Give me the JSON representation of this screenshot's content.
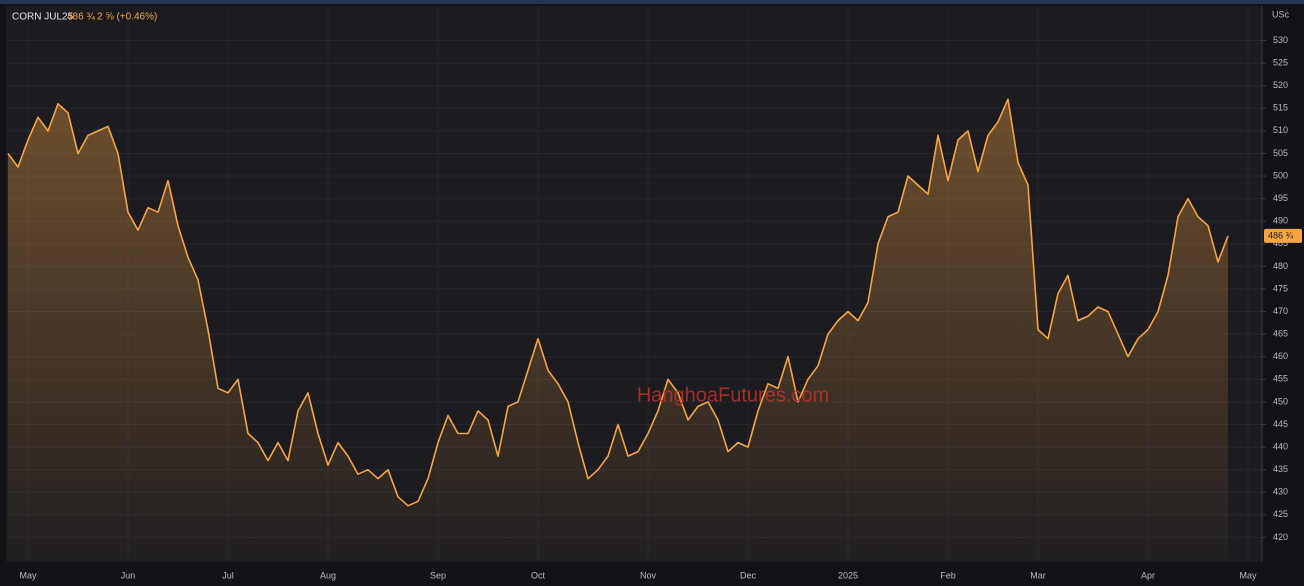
{
  "chart_data": {
    "type": "line",
    "title": "CORN JUL25",
    "change": "2 ⅝ (+0.46%)",
    "y_unit": "USc",
    "watermark": "HanghoaFutures.com",
    "categories": [
      null,
      null,
      "May",
      null,
      null,
      null,
      null,
      null,
      null,
      null,
      null,
      null,
      "Jun",
      null,
      null,
      null,
      null,
      null,
      null,
      null,
      null,
      null,
      "Jul",
      null,
      null,
      null,
      null,
      null,
      null,
      null,
      null,
      null,
      "Aug",
      null,
      null,
      null,
      null,
      null,
      null,
      null,
      null,
      null,
      null,
      "Sep",
      null,
      null,
      null,
      null,
      null,
      null,
      null,
      null,
      null,
      "Oct",
      null,
      null,
      null,
      null,
      null,
      null,
      null,
      null,
      null,
      null,
      "Nov",
      null,
      null,
      null,
      null,
      null,
      null,
      null,
      null,
      null,
      "Dec",
      null,
      null,
      null,
      null,
      null,
      null,
      null,
      null,
      null,
      "2025",
      null,
      null,
      null,
      null,
      null,
      null,
      null,
      null,
      null,
      "Feb",
      null,
      null,
      null,
      null,
      null,
      null,
      null,
      null,
      "Mar",
      null,
      null,
      null,
      null,
      null,
      null,
      null,
      null,
      null,
      null,
      "Apr",
      null,
      null,
      null,
      null,
      null,
      null,
      null,
      null,
      null,
      "May",
      null
    ],
    "values": [
      505,
      502,
      508,
      513,
      510,
      516,
      514,
      505,
      509,
      510,
      511,
      505,
      492,
      488,
      493,
      492,
      499,
      489,
      482,
      477,
      466,
      453,
      452,
      455,
      443,
      441,
      437,
      441,
      437,
      448,
      452,
      443,
      436,
      441,
      438,
      434,
      435,
      433,
      435,
      429,
      427,
      428,
      433,
      441,
      447,
      443,
      443,
      448,
      446,
      438,
      449,
      450,
      457,
      464,
      457,
      454,
      450,
      441,
      433,
      435,
      438,
      445,
      438,
      439,
      443,
      448,
      455,
      452,
      446,
      449,
      450,
      446,
      439,
      441,
      440,
      448,
      454,
      453,
      460,
      450,
      455,
      458,
      465,
      468,
      470,
      468,
      472,
      485,
      491,
      492,
      500,
      498,
      496,
      509,
      499,
      508,
      510,
      501,
      509,
      512,
      517,
      503,
      498,
      466,
      464,
      474,
      478,
      468,
      469,
      471,
      470,
      465,
      460,
      464,
      466,
      470,
      478,
      491,
      495,
      491,
      489,
      481,
      486.75,
      null,
      null,
      null
    ],
    "value_labels": [
      null,
      null,
      null,
      null,
      null,
      null,
      null,
      null,
      null,
      null,
      null,
      null,
      null,
      null,
      null,
      null,
      null,
      null,
      null,
      null,
      null,
      null,
      null,
      null,
      null,
      null,
      null,
      null,
      null,
      null,
      null,
      null,
      null,
      null,
      null,
      null,
      null,
      null,
      null,
      null,
      null,
      null,
      null,
      null,
      null,
      null,
      null,
      null,
      null,
      null,
      null,
      null,
      null,
      null,
      null,
      null,
      null,
      null,
      null,
      null,
      null,
      null,
      null,
      null,
      null,
      null,
      null,
      null,
      null,
      null,
      null,
      null,
      null,
      null,
      null,
      null,
      null,
      null,
      null,
      null,
      null,
      null,
      null,
      null,
      null,
      null,
      null,
      null,
      null,
      null,
      null,
      null,
      null,
      null,
      null,
      null,
      null,
      null,
      null,
      null,
      null,
      null,
      null,
      null,
      null,
      null,
      null,
      null,
      null,
      null,
      null,
      null,
      null,
      null,
      null,
      null,
      null,
      null,
      null,
      null,
      null,
      null,
      "486 ¾",
      null,
      null,
      null
    ],
    "color": "#f5a443",
    "ylim": [
      415,
      537.2
    ],
    "yticks": [
      420,
      425,
      430,
      435,
      440,
      445,
      450,
      455,
      460,
      465,
      470,
      475,
      480,
      485,
      490,
      495,
      500,
      505,
      510,
      515,
      520,
      525,
      530
    ],
    "grid": true
  }
}
